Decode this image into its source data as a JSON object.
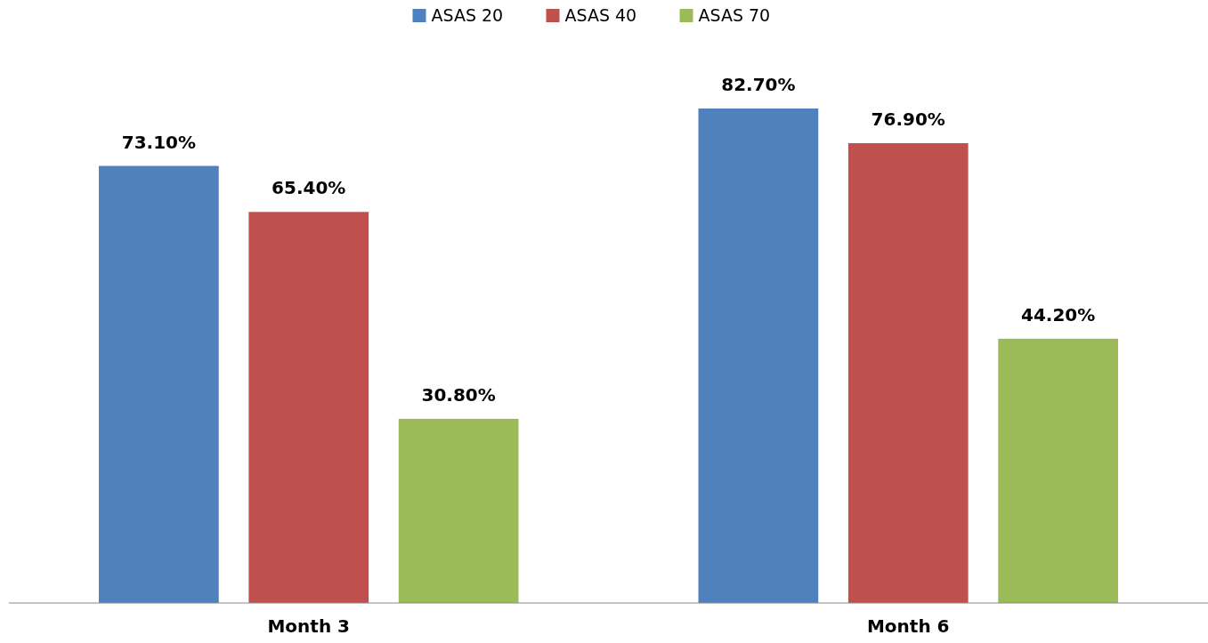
{
  "chart_data": {
    "type": "bar",
    "categories": [
      "Month 3",
      "Month 6"
    ],
    "series": [
      {
        "name": "ASAS 20",
        "color": "#4f81bd",
        "values": [
          73.1,
          82.7
        ],
        "value_labels": [
          "73.10%",
          "82.70%"
        ]
      },
      {
        "name": "ASAS 40",
        "color": "#c0504d",
        "values": [
          65.4,
          76.9
        ],
        "value_labels": [
          "65.40%",
          "76.90%"
        ]
      },
      {
        "name": "ASAS 70",
        "color": "#9bbb59",
        "values": [
          30.8,
          44.2
        ],
        "value_labels": [
          "30.80%",
          "44.20%"
        ]
      }
    ],
    "legend": "top"
  }
}
